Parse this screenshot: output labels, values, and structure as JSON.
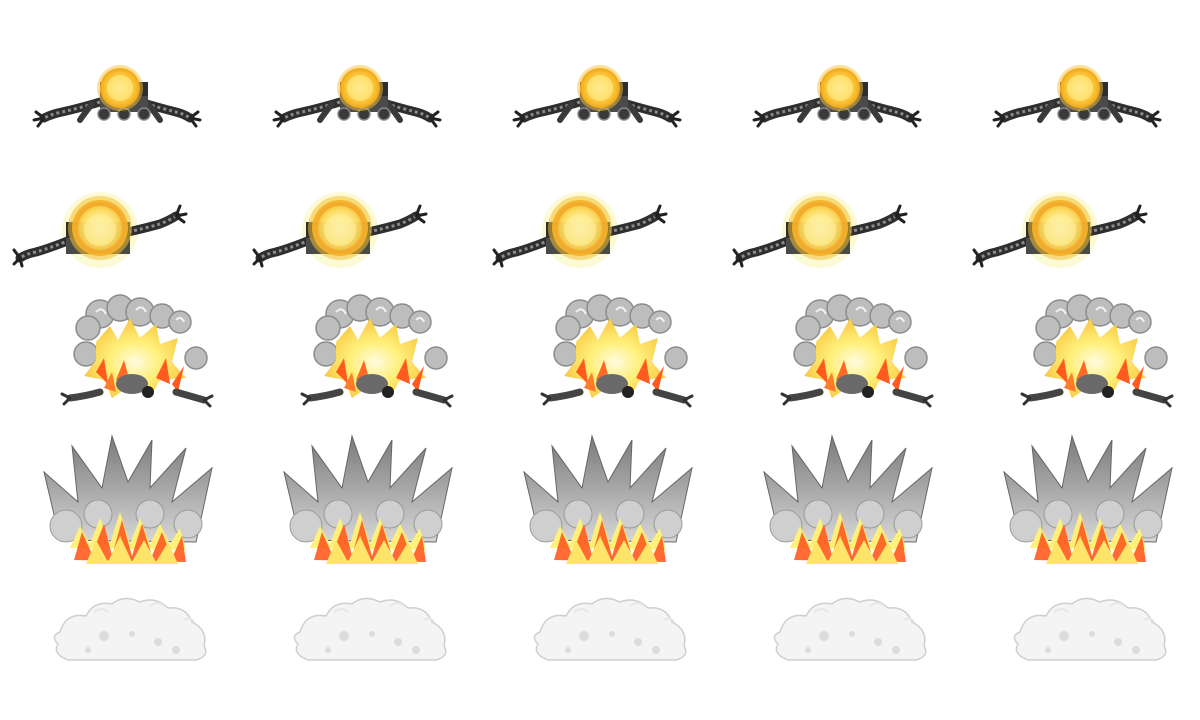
{
  "sprite_sheet": {
    "columns": 5,
    "rows": [
      {
        "frame": "idle-glow-small",
        "count": 5
      },
      {
        "frame": "charged-glow-large",
        "count": 5
      },
      {
        "frame": "explosion-burst",
        "count": 5
      },
      {
        "frame": "explosion-peak",
        "count": 5
      },
      {
        "frame": "smoke-dissipate",
        "count": 5
      }
    ]
  },
  "colors": {
    "background": "#ffffff",
    "robot_metal": "#3a3a3a",
    "robot_highlight": "#8a8a8a",
    "core_glow": "#f5c23a",
    "core_inner": "#ffe680",
    "fire_orange": "#ff5a1f",
    "fire_yellow": "#fff27a",
    "smoke_gray": "#9a9a9a",
    "smoke_light": "#e2e2e2"
  }
}
